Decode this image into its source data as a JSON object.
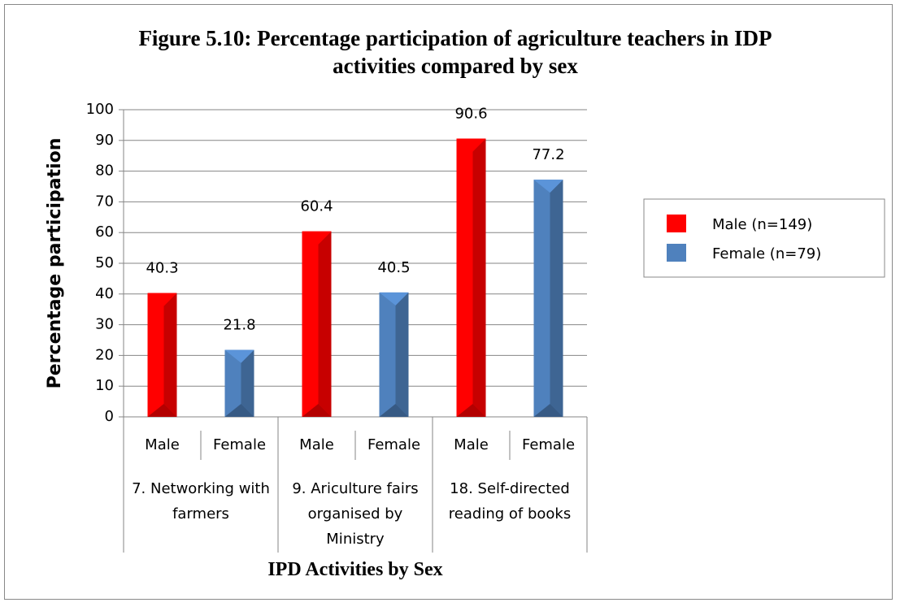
{
  "chart_data": {
    "type": "bar",
    "title": "Figure 5.10: Percentage participation of agriculture teachers in IDP activities compared by sex",
    "x_label": "IPD Activities  by Sex",
    "y_label": "Percentage participation",
    "categories": [
      "7. Networking with farmers",
      "9. Ariculture fairs organised by Ministry",
      "18. Self-directed reading of books"
    ],
    "series": [
      {
        "name": "Male (n=149)",
        "short_name": "Male",
        "color": "#ff0000",
        "values": [
          40.3,
          60.4,
          90.6
        ]
      },
      {
        "name": "Female (n=79)",
        "short_name": "Female",
        "color": "#4f81bd",
        "values": [
          21.8,
          40.5,
          77.2
        ]
      }
    ],
    "ylim": [
      0,
      100
    ],
    "yticks": [
      0,
      10,
      20,
      30,
      40,
      50,
      60,
      70,
      80,
      90,
      100
    ],
    "grid": true,
    "legend": "right"
  }
}
